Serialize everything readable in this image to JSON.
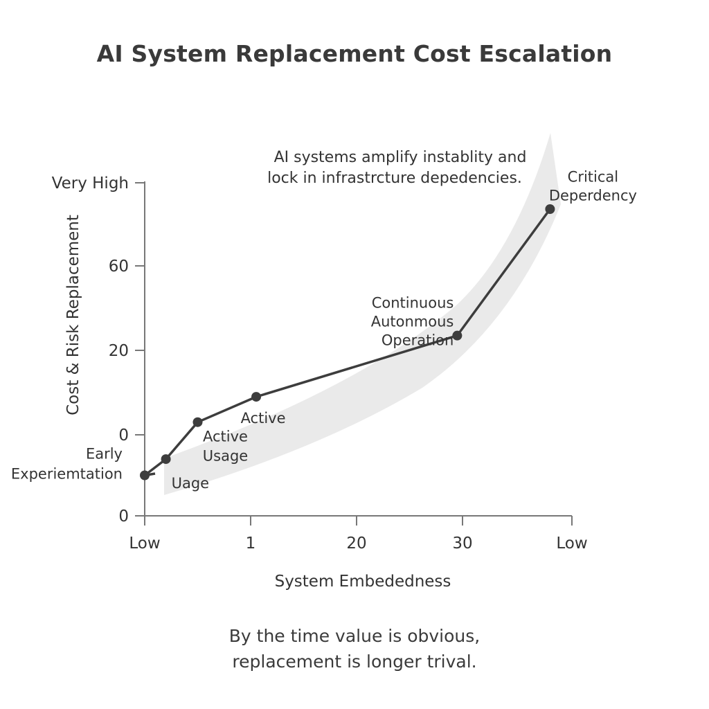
{
  "colors": {
    "line": "#3d3d3d",
    "band": "#e6e6e6",
    "axis": "#777777",
    "text": "#333333"
  },
  "footer": {
    "line1": "By the time value is obvious,",
    "line2": "replacement is longer trival."
  },
  "chart_data": {
    "type": "line",
    "title": "AI System Replacement Cost Escalation",
    "xlabel": "System Embededness",
    "ylabel": "Cost & Risk Replacement",
    "x_tick_labels": [
      "Low",
      "1",
      "20",
      "30",
      "Low"
    ],
    "y_tick_labels": [
      "0",
      "0",
      "20",
      "60",
      "Very High"
    ],
    "grid": false,
    "legend": "none",
    "annotation": {
      "line1": "AI systems amplify instablity and",
      "line2": "lock in infrastrcture depedencies."
    },
    "series": [
      {
        "x": [
          0,
          0.2,
          0.5,
          2.0,
          29.5,
          38
        ],
        "y": [
          -5,
          -3,
          3,
          9,
          27,
          65
        ],
        "point_labels": [
          [
            "Early",
            "Experiemtation"
          ],
          [
            "Uage"
          ],
          [
            "Active",
            "Usage"
          ],
          [
            "Active"
          ],
          [
            "Continuous",
            "Autonmous",
            "Operation"
          ],
          [
            "Critical",
            "Deperdency"
          ]
        ]
      }
    ]
  }
}
